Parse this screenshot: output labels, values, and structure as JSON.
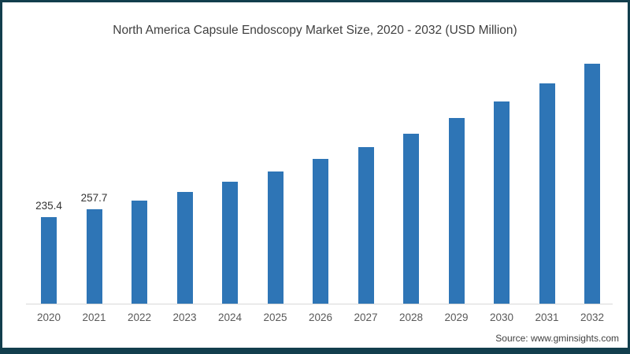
{
  "chart_data": {
    "type": "bar",
    "title": "North America Capsule Endoscopy Market Size, 2020 - 2032 (USD Million)",
    "categories": [
      "2020",
      "2021",
      "2022",
      "2023",
      "2024",
      "2025",
      "2026",
      "2027",
      "2028",
      "2029",
      "2030",
      "2031",
      "2032"
    ],
    "values": [
      235.4,
      257.7,
      281,
      305,
      333,
      361,
      395,
      427,
      464,
      506,
      551,
      602,
      656
    ],
    "data_labels": [
      "235.4",
      "257.7",
      "",
      "",
      "",
      "",
      "",
      "",
      "",
      "",
      "",
      "",
      ""
    ],
    "xlabel": "",
    "ylabel": "",
    "ylim": [
      0,
      700
    ],
    "grid": false,
    "legend": false,
    "bar_color": "#2e75b6",
    "axis_line_color": "#d9d9d9",
    "tick_label_color": "#595959",
    "data_label_color": "#333333",
    "title_color": "#404040",
    "frame_border_color": "#123e4d",
    "background_color": "#ffffff"
  },
  "footer": {
    "source": "Source: www.gminsights.com"
  }
}
